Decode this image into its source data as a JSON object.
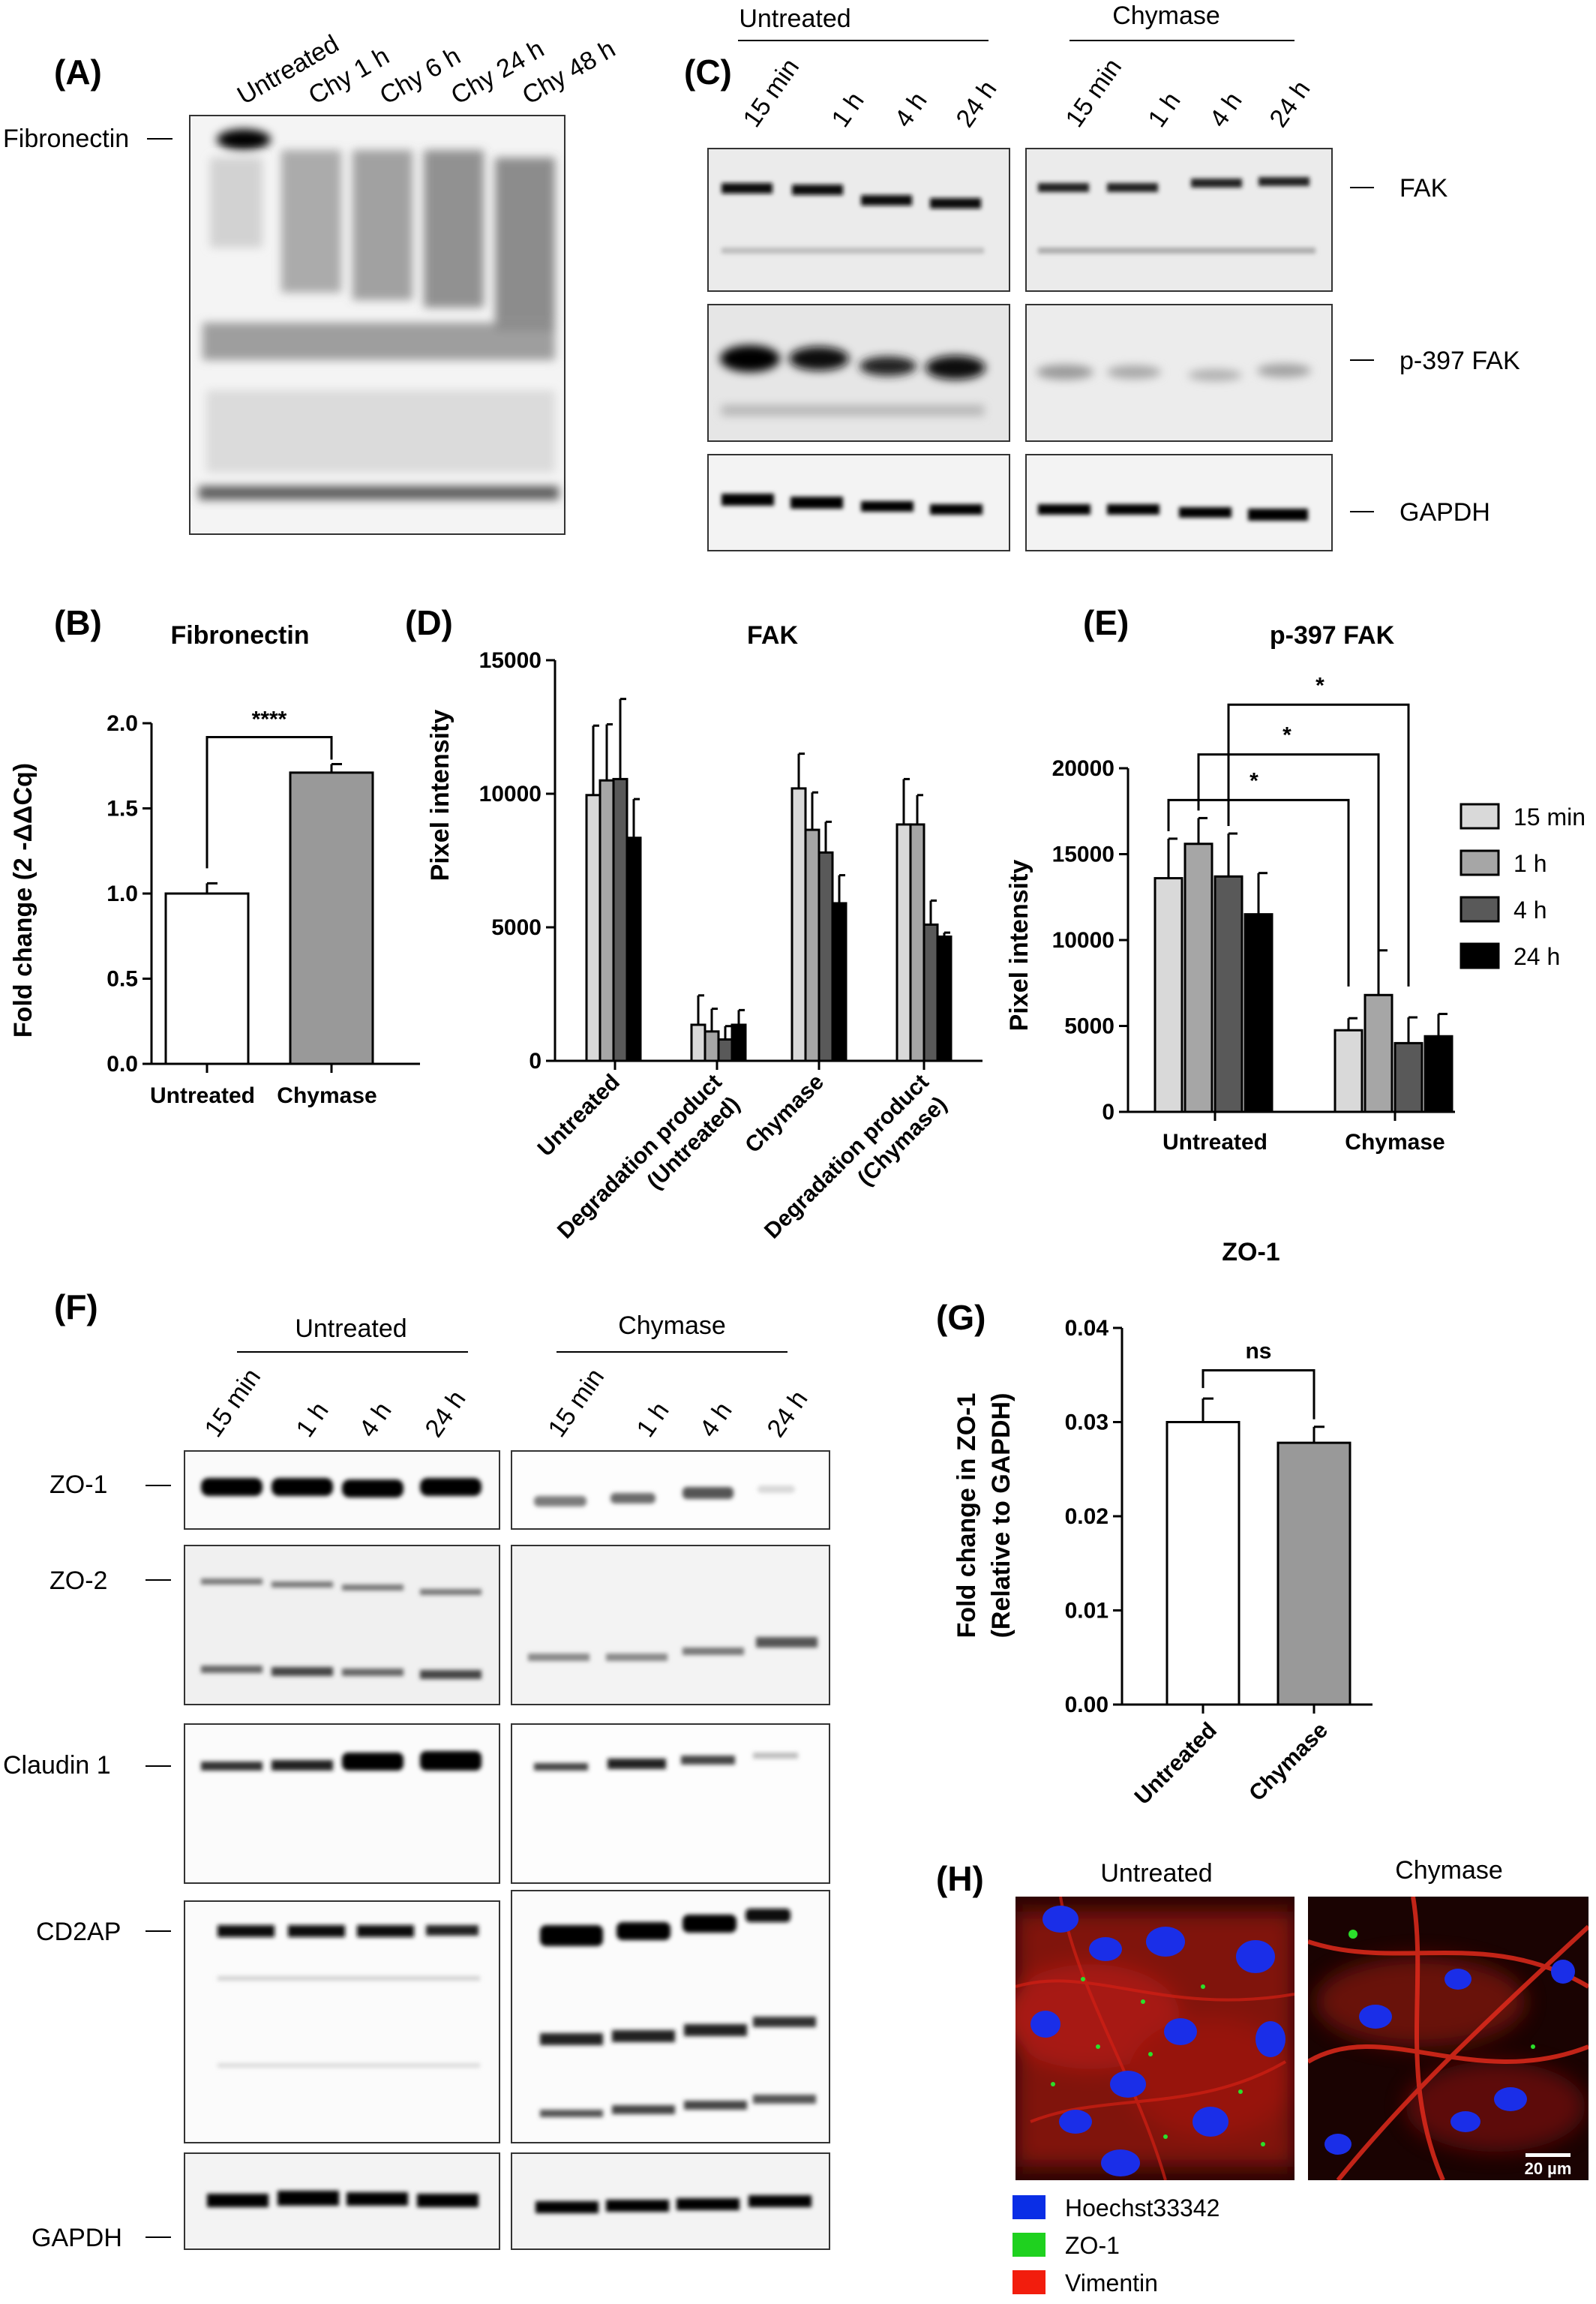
{
  "panels": {
    "A": {
      "label": "(A)",
      "lanes": [
        "Untreated",
        "Chy 1 h",
        "Chy 6 h",
        "Chy 24 h",
        "Chy 48 h"
      ],
      "protein": "Fibronectin"
    },
    "B": {
      "label": "(B)"
    },
    "C": {
      "label": "(C)",
      "groups": [
        "Untreated",
        "Chymase"
      ],
      "timepoints": [
        "15 min",
        "1 h",
        "4 h",
        "24 h"
      ],
      "proteins": [
        "FAK",
        "p-397 FAK",
        "GAPDH"
      ]
    },
    "D": {
      "label": "(D)"
    },
    "E": {
      "label": "(E)"
    },
    "F": {
      "label": "(F)",
      "groups": [
        "Untreated",
        "Chymase"
      ],
      "timepoints": [
        "15 min",
        "1 h",
        "4 h",
        "24 h"
      ],
      "proteins": [
        "ZO-1",
        "ZO-2",
        "Claudin 1",
        "CD2AP",
        "GAPDH"
      ]
    },
    "G": {
      "label": "(G)"
    },
    "H": {
      "label": "(H)",
      "images": [
        "Untreated",
        "Chymase"
      ],
      "scale_bar": "20 µm",
      "legend": [
        {
          "name": "Hoechst33342",
          "color": "#0a2ee6"
        },
        {
          "name": "ZO-1",
          "color": "#1fd11f"
        },
        {
          "name": "Vimentin",
          "color": "#f21d0d"
        }
      ]
    }
  },
  "chart_data": [
    {
      "panel": "B",
      "type": "bar",
      "title": "Fibronectin",
      "ylabel": "Fold change (2 -ΔΔCq)",
      "ylim": [
        0,
        2.0
      ],
      "yticks": [
        "0.0",
        "0.5",
        "1.0",
        "1.5",
        "2.0"
      ],
      "categories": [
        "Untreated",
        "Chymase"
      ],
      "values": [
        1.0,
        1.71
      ],
      "errors": [
        0.06,
        0.05
      ],
      "colors": [
        "#ffffff",
        "#999999"
      ],
      "significance": [
        {
          "between": [
            "Untreated",
            "Chymase"
          ],
          "label": "****"
        }
      ]
    },
    {
      "panel": "D",
      "type": "bar",
      "title": "FAK",
      "ylabel": "Pixel intensity",
      "ylim": [
        0,
        15000
      ],
      "yticks": [
        "0",
        "5000",
        "10000",
        "15000"
      ],
      "categories": [
        "Untreated",
        "Degradation product (Untreated)",
        "Chymase",
        "Degradation product (Chymase)"
      ],
      "series": [
        {
          "values": [
            9950,
            1350,
            10200,
            8850
          ],
          "errors": [
            2600,
            1100,
            1300,
            1700
          ],
          "color": "#d9d9d9"
        },
        {
          "values": [
            10500,
            1100,
            8650,
            8850
          ],
          "errors": [
            2100,
            850,
            1400,
            1100
          ],
          "color": "#a6a6a6"
        },
        {
          "values": [
            10550,
            800,
            7800,
            5100
          ],
          "errors": [
            3000,
            500,
            1150,
            900
          ],
          "color": "#595959"
        },
        {
          "values": [
            8350,
            1350,
            5900,
            4650
          ],
          "errors": [
            1450,
            550,
            1050,
            150
          ],
          "color": "#000000"
        }
      ]
    },
    {
      "panel": "E",
      "type": "bar",
      "title": "p-397 FAK",
      "ylabel": "Pixel intensity",
      "ylim": [
        0,
        20000
      ],
      "yticks": [
        "0",
        "5000",
        "10000",
        "15000",
        "20000"
      ],
      "categories": [
        "Untreated",
        "Chymase"
      ],
      "series": [
        {
          "name": "15 min",
          "values": [
            13600,
            4750
          ],
          "errors": [
            2300,
            700
          ],
          "color": "#d9d9d9"
        },
        {
          "name": "1 h",
          "values": [
            15600,
            6800
          ],
          "errors": [
            1500,
            2600
          ],
          "color": "#a6a6a6"
        },
        {
          "name": "4 h",
          "values": [
            13700,
            4000
          ],
          "errors": [
            2500,
            1500
          ],
          "color": "#595959"
        },
        {
          "name": "24 h",
          "values": [
            11500,
            4400
          ],
          "errors": [
            2400,
            1300
          ],
          "color": "#000000"
        }
      ],
      "significance": [
        "*",
        "*",
        "*"
      ],
      "legend_position": "right"
    },
    {
      "panel": "G",
      "type": "bar",
      "title": "ZO-1",
      "ylabel": "Fold change in ZO-1 (Relative to GAPDH)",
      "ylim": [
        0,
        0.04
      ],
      "yticks": [
        "0.00",
        "0.01",
        "0.02",
        "0.03",
        "0.04"
      ],
      "categories": [
        "Untreated",
        "Chymase"
      ],
      "values": [
        0.03,
        0.0278
      ],
      "errors": [
        0.0025,
        0.0017
      ],
      "colors": [
        "#ffffff",
        "#999999"
      ],
      "significance": [
        {
          "between": [
            "Untreated",
            "Chymase"
          ],
          "label": "ns"
        }
      ]
    }
  ]
}
